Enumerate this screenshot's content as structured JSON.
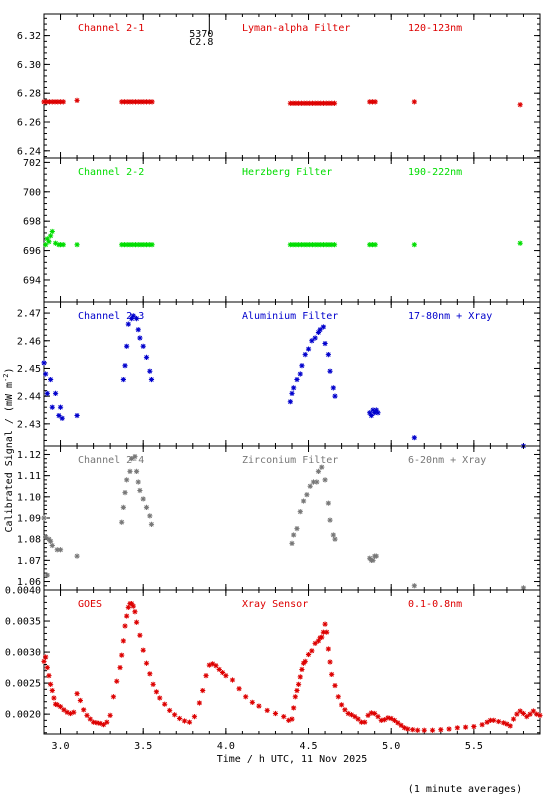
{
  "chart_data": {
    "type": "scatter",
    "ylabel": "Calibrated Signal / (mW m",
    "ylabel_sup": "-2",
    "ylabel_end": ")",
    "xlabel": "Time / h UTC, 11 Nov 2025",
    "footnote": "(1 minute averages)",
    "x_range": [
      2.9,
      5.9
    ],
    "x_ticks": [
      3.0,
      3.5,
      4.0,
      4.5,
      5.0,
      5.5
    ],
    "x_tick_labels": [
      "3.0",
      "3.5",
      "4.0",
      "4.5",
      "5.0",
      "5.5"
    ],
    "marker": "*",
    "overlay_mark": {
      "x": 3.9,
      "lines": [
        "5370",
        "C2.8"
      ]
    },
    "panels": [
      {
        "channel": "Channel 2-1",
        "filter": "Lyman-alpha Filter",
        "band": "120-123nm",
        "color": "#dd0000",
        "ylim": [
          6.235,
          6.335
        ],
        "y_ticks": [
          6.24,
          6.26,
          6.28,
          6.3,
          6.32
        ],
        "y_tick_labels": [
          "6.24",
          "6.26",
          "6.28",
          "6.30",
          "6.32"
        ],
        "segments": [
          [
            2.9,
            3.02,
            6.274
          ],
          [
            3.1,
            3.1,
            6.275
          ],
          [
            3.37,
            3.57,
            6.274
          ],
          [
            4.39,
            4.66,
            6.273
          ],
          [
            4.87,
            4.92,
            6.274
          ],
          [
            5.14,
            5.14,
            6.274
          ],
          [
            5.78,
            5.78,
            6.272
          ]
        ]
      },
      {
        "channel": "Channel 2-2",
        "filter": "Herzberg Filter",
        "band": "190-222nm",
        "color": "#00dd00",
        "ylim": [
          692.5,
          702.3
        ],
        "y_ticks": [
          694,
          696,
          698,
          700,
          702
        ],
        "y_tick_labels": [
          "694",
          "696",
          "698",
          "700",
          "702"
        ],
        "points": [
          [
            2.91,
            696.4
          ],
          [
            2.92,
            696.8
          ],
          [
            2.93,
            696.6
          ],
          [
            2.94,
            697.0
          ],
          [
            2.95,
            697.3
          ],
          [
            2.97,
            696.5
          ],
          [
            2.99,
            696.4
          ]
        ],
        "segments": [
          [
            3.0,
            3.02,
            696.4
          ],
          [
            3.1,
            3.1,
            696.4
          ],
          [
            3.37,
            3.57,
            696.4
          ],
          [
            4.39,
            4.66,
            696.4
          ],
          [
            4.87,
            4.92,
            696.4
          ],
          [
            5.14,
            5.14,
            696.4
          ],
          [
            5.78,
            5.78,
            696.5
          ]
        ]
      },
      {
        "channel": "Channel 2-3",
        "filter": "Aluminium Filter",
        "band": "17-80nm + Xray",
        "color": "#0000cc",
        "ylim": [
          2.422,
          2.474
        ],
        "y_ticks": [
          2.43,
          2.44,
          2.45,
          2.46,
          2.47
        ],
        "y_tick_labels": [
          "2.43",
          "2.44",
          "2.45",
          "2.46",
          "2.47"
        ],
        "points": [
          [
            2.9,
            2.452
          ],
          [
            2.91,
            2.448
          ],
          [
            2.92,
            2.441
          ],
          [
            2.94,
            2.446
          ],
          [
            2.95,
            2.436
          ],
          [
            2.97,
            2.441
          ],
          [
            2.99,
            2.433
          ],
          [
            3.0,
            2.436
          ],
          [
            3.01,
            2.432
          ],
          [
            3.1,
            2.433
          ],
          [
            3.38,
            2.446
          ],
          [
            3.39,
            2.451
          ],
          [
            3.4,
            2.458
          ],
          [
            3.41,
            2.466
          ],
          [
            3.43,
            2.468
          ],
          [
            3.44,
            2.469
          ],
          [
            3.46,
            2.468
          ],
          [
            3.47,
            2.464
          ],
          [
            3.48,
            2.461
          ],
          [
            3.5,
            2.458
          ],
          [
            3.52,
            2.454
          ],
          [
            3.54,
            2.449
          ],
          [
            3.55,
            2.446
          ],
          [
            4.39,
            2.438
          ],
          [
            4.4,
            2.441
          ],
          [
            4.41,
            2.443
          ],
          [
            4.43,
            2.446
          ],
          [
            4.45,
            2.448
          ],
          [
            4.46,
            2.451
          ],
          [
            4.48,
            2.455
          ],
          [
            4.5,
            2.457
          ],
          [
            4.52,
            2.46
          ],
          [
            4.54,
            2.461
          ],
          [
            4.56,
            2.463
          ],
          [
            4.57,
            2.464
          ],
          [
            4.59,
            2.465
          ],
          [
            4.6,
            2.459
          ],
          [
            4.62,
            2.455
          ],
          [
            4.63,
            2.449
          ],
          [
            4.65,
            2.443
          ],
          [
            4.66,
            2.44
          ],
          [
            4.87,
            2.434
          ],
          [
            4.88,
            2.433
          ],
          [
            4.89,
            2.435
          ],
          [
            4.9,
            2.434
          ],
          [
            4.91,
            2.435
          ],
          [
            4.92,
            2.434
          ],
          [
            5.14,
            2.425
          ],
          [
            5.8,
            2.422
          ]
        ]
      },
      {
        "channel": "Channel 2-4",
        "filter": "Zirconium Filter",
        "band": "6-20nm + Xray",
        "color": "#777777",
        "ylim": [
          1.056,
          1.124
        ],
        "y_ticks": [
          1.06,
          1.07,
          1.08,
          1.09,
          1.1,
          1.11,
          1.12
        ],
        "y_tick_labels": [
          "1.06",
          "1.07",
          "1.08",
          "1.09",
          "1.10",
          "1.11",
          "1.12"
        ],
        "points": [
          [
            2.9,
            1.09
          ],
          [
            2.91,
            1.081
          ],
          [
            2.93,
            1.08
          ],
          [
            2.94,
            1.079
          ],
          [
            2.95,
            1.077
          ],
          [
            2.98,
            1.075
          ],
          [
            3.0,
            1.075
          ],
          [
            2.92,
            1.063
          ],
          [
            3.1,
            1.072
          ],
          [
            3.37,
            1.088
          ],
          [
            3.38,
            1.095
          ],
          [
            3.39,
            1.102
          ],
          [
            3.4,
            1.108
          ],
          [
            3.42,
            1.112
          ],
          [
            3.43,
            1.118
          ],
          [
            3.45,
            1.119
          ],
          [
            3.46,
            1.112
          ],
          [
            3.47,
            1.107
          ],
          [
            3.48,
            1.103
          ],
          [
            3.5,
            1.099
          ],
          [
            3.52,
            1.095
          ],
          [
            3.54,
            1.091
          ],
          [
            3.55,
            1.087
          ],
          [
            4.4,
            1.078
          ],
          [
            4.41,
            1.082
          ],
          [
            4.43,
            1.085
          ],
          [
            4.45,
            1.093
          ],
          [
            4.47,
            1.098
          ],
          [
            4.49,
            1.101
          ],
          [
            4.51,
            1.105
          ],
          [
            4.53,
            1.107
          ],
          [
            4.55,
            1.107
          ],
          [
            4.56,
            1.112
          ],
          [
            4.58,
            1.114
          ],
          [
            4.6,
            1.108
          ],
          [
            4.62,
            1.097
          ],
          [
            4.63,
            1.089
          ],
          [
            4.65,
            1.082
          ],
          [
            4.66,
            1.08
          ],
          [
            4.87,
            1.071
          ],
          [
            4.88,
            1.07
          ],
          [
            4.89,
            1.07
          ],
          [
            4.9,
            1.072
          ],
          [
            4.91,
            1.072
          ],
          [
            5.14,
            1.058
          ],
          [
            5.8,
            1.057
          ]
        ]
      },
      {
        "channel": "GOES",
        "filter": "Xray Sensor",
        "band": "0.1-0.8nm",
        "color": "#dd0000",
        "ylim": [
          0.00168,
          0.004
        ],
        "y_ticks": [
          0.002,
          0.0025,
          0.003,
          0.0035,
          0.004
        ],
        "y_tick_labels": [
          "0.0020",
          "0.0025",
          "0.0030",
          "0.0035",
          "0.0040"
        ],
        "series_x": [
          2.9,
          2.91,
          2.92,
          2.93,
          2.94,
          2.95,
          2.96,
          2.97,
          2.98,
          3.0,
          3.02,
          3.04,
          3.06,
          3.08,
          3.1,
          3.12,
          3.14,
          3.16,
          3.18,
          3.2,
          3.22,
          3.24,
          3.26,
          3.28,
          3.3,
          3.32,
          3.34,
          3.36,
          3.37,
          3.38,
          3.39,
          3.4,
          3.41,
          3.42,
          3.43,
          3.44,
          3.45,
          3.46,
          3.48,
          3.5,
          3.52,
          3.54,
          3.56,
          3.58,
          3.6,
          3.63,
          3.66,
          3.69,
          3.72,
          3.75,
          3.78,
          3.81,
          3.84,
          3.86,
          3.88,
          3.9,
          3.92,
          3.94,
          3.96,
          3.98,
          4.0,
          4.04,
          4.08,
          4.12,
          4.16,
          4.2,
          4.25,
          4.3,
          4.35,
          4.38,
          4.4,
          4.41,
          4.42,
          4.43,
          4.44,
          4.45,
          4.46,
          4.47,
          4.48,
          4.5,
          4.52,
          4.54,
          4.56,
          4.57,
          4.58,
          4.59,
          4.6,
          4.61,
          4.62,
          4.63,
          4.64,
          4.66,
          4.68,
          4.7,
          4.72,
          4.74,
          4.76,
          4.78,
          4.8,
          4.82,
          4.84,
          4.86,
          4.88,
          4.9,
          4.92,
          4.94,
          4.96,
          4.98,
          5.0,
          5.02,
          5.04,
          5.06,
          5.08,
          5.1,
          5.13,
          5.16,
          5.2,
          5.25,
          5.3,
          5.35,
          5.4,
          5.45,
          5.5,
          5.55,
          5.58,
          5.6,
          5.62,
          5.65,
          5.68,
          5.7,
          5.72,
          5.74,
          5.76,
          5.78,
          5.8,
          5.82,
          5.84,
          5.86,
          5.88,
          5.9
        ],
        "series_y": [
          0.00285,
          0.00292,
          0.00275,
          0.00262,
          0.00248,
          0.00238,
          0.00226,
          0.00216,
          0.00215,
          0.00212,
          0.00207,
          0.00203,
          0.00201,
          0.00203,
          0.00233,
          0.00222,
          0.00207,
          0.00198,
          0.00192,
          0.00187,
          0.00186,
          0.00185,
          0.00183,
          0.00187,
          0.00198,
          0.00228,
          0.00253,
          0.00275,
          0.00295,
          0.00318,
          0.00342,
          0.00358,
          0.00372,
          0.00378,
          0.00378,
          0.00374,
          0.00365,
          0.00348,
          0.00327,
          0.00303,
          0.00282,
          0.00265,
          0.00248,
          0.00236,
          0.00226,
          0.00216,
          0.00206,
          0.00199,
          0.00193,
          0.00189,
          0.00187,
          0.00196,
          0.00218,
          0.00238,
          0.00262,
          0.00279,
          0.00281,
          0.00278,
          0.00272,
          0.00267,
          0.00262,
          0.00255,
          0.00241,
          0.00228,
          0.00219,
          0.00213,
          0.00206,
          0.00201,
          0.00196,
          0.0019,
          0.00192,
          0.0021,
          0.00228,
          0.00238,
          0.00248,
          0.0026,
          0.00272,
          0.00282,
          0.00285,
          0.00296,
          0.00302,
          0.00314,
          0.00318,
          0.00323,
          0.00324,
          0.00332,
          0.00345,
          0.00332,
          0.00305,
          0.00284,
          0.00264,
          0.00246,
          0.00228,
          0.00215,
          0.00207,
          0.00201,
          0.00199,
          0.00196,
          0.00192,
          0.00187,
          0.00187,
          0.00198,
          0.00202,
          0.00201,
          0.00196,
          0.0019,
          0.00191,
          0.00194,
          0.00193,
          0.0019,
          0.00186,
          0.00182,
          0.00178,
          0.00176,
          0.00175,
          0.00174,
          0.00174,
          0.00174,
          0.00175,
          0.00176,
          0.00178,
          0.00179,
          0.0018,
          0.00183,
          0.00187,
          0.0019,
          0.0019,
          0.00188,
          0.00186,
          0.00184,
          0.00181,
          0.00192,
          0.002,
          0.00205,
          0.00201,
          0.00196,
          0.002,
          0.00205,
          0.002,
          0.00198
        ]
      }
    ]
  }
}
